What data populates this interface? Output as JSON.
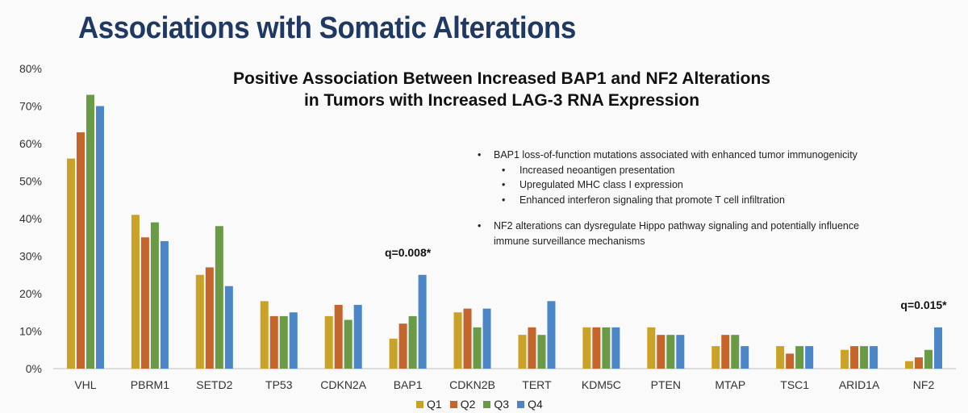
{
  "slide": {
    "title": "Associations with Somatic Alterations",
    "subtitle_lines": [
      "Positive Association Between Increased BAP1 and NF2 Alterations",
      "in Tumors with Increased LAG-3 RNA Expression"
    ]
  },
  "notes": {
    "bullet1": "BAP1 loss-of-function mutations associated with enhanced tumor immunogenicity",
    "bullet1_sub": [
      "Increased neoantigen presentation",
      "Upregulated MHC class I expression",
      "Enhanced interferon signaling that promote T cell infiltration"
    ],
    "bullet2_line1": "NF2 alterations can dysregulate Hippo pathway signaling and potentially influence",
    "bullet2_line2": "immune surveillance mechanisms"
  },
  "chart_data": {
    "type": "bar",
    "title": "Positive Association Between Increased BAP1 and NF2 Alterations in Tumors with Increased LAG-3 RNA Expression",
    "xlabel": "",
    "ylabel": "",
    "ylim": [
      0,
      80
    ],
    "yticks": [
      "0%",
      "10%",
      "20%",
      "30%",
      "40%",
      "50%",
      "60%",
      "70%",
      "80%"
    ],
    "grid": false,
    "legend_position": "bottom-center",
    "categories": [
      "VHL",
      "PBRM1",
      "SETD2",
      "TP53",
      "CDKN2A",
      "BAP1",
      "CDKN2B",
      "TERT",
      "KDM5C",
      "PTEN",
      "MTAP",
      "TSC1",
      "ARID1A",
      "NF2"
    ],
    "series": [
      {
        "name": "Q1",
        "color": "#c9a227",
        "values": [
          56,
          41,
          25,
          18,
          14,
          8,
          15,
          9,
          11,
          11,
          6,
          6,
          5,
          2
        ]
      },
      {
        "name": "Q2",
        "color": "#c5652c",
        "values": [
          63,
          35,
          27,
          14,
          17,
          12,
          16,
          11,
          11,
          9,
          9,
          4,
          6,
          3
        ]
      },
      {
        "name": "Q3",
        "color": "#6a9a45",
        "values": [
          73,
          39,
          38,
          14,
          13,
          14,
          11,
          9,
          11,
          9,
          9,
          6,
          6,
          5
        ]
      },
      {
        "name": "Q4",
        "color": "#4a86c8",
        "values": [
          70,
          34,
          22,
          15,
          17,
          25,
          16,
          18,
          11,
          9,
          6,
          6,
          6,
          11
        ]
      }
    ],
    "annotations": [
      {
        "category": "BAP1",
        "text": "q=0.008*"
      },
      {
        "category": "NF2",
        "text": "q=0.015*"
      }
    ]
  }
}
